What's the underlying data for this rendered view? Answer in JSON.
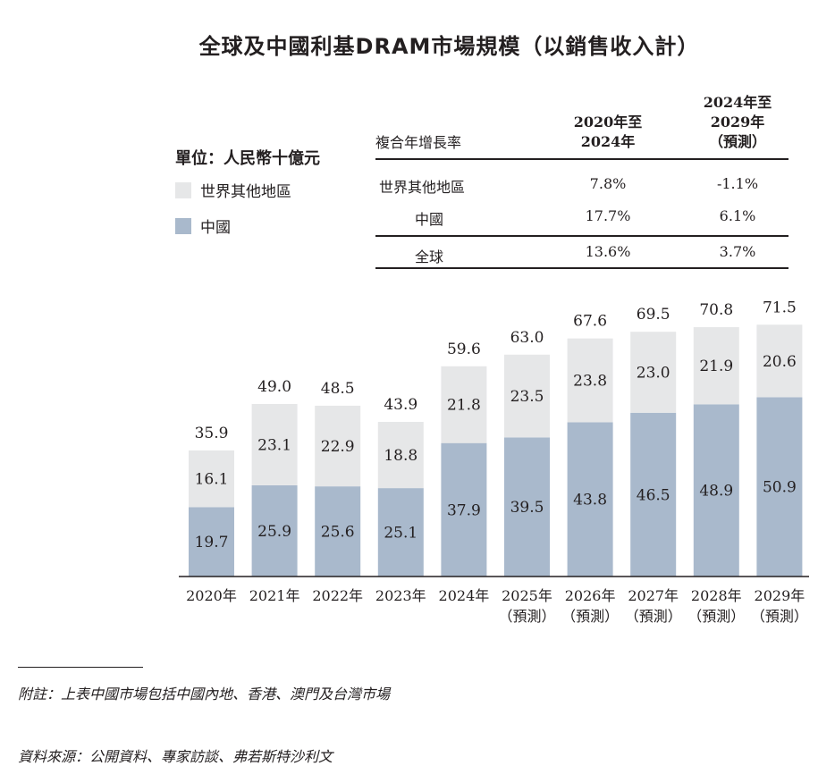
{
  "title": "全球及中國利基DRAM市場規模（以銷售收入計）",
  "unit_label": "單位：人民幣十億元",
  "legend": [
    {
      "label": "世界其他地區",
      "color": "#e6e7e8"
    },
    {
      "label": "中國",
      "color": "#a9b9cc"
    }
  ],
  "growth_table": {
    "header_label": "複合年增長率",
    "col1_header": [
      "2020年至",
      "2024年"
    ],
    "col2_header": [
      "2024年至",
      "2029年",
      "（預測）"
    ],
    "rows": [
      {
        "label": "世界其他地區",
        "c1": "7.8%",
        "c2": "-1.1%"
      },
      {
        "label": "中國",
        "c1": "17.7%",
        "c2": "6.1%"
      },
      {
        "label": "全球",
        "c1": "13.6%",
        "c2": "3.7%"
      }
    ]
  },
  "chart_data": {
    "type": "bar",
    "stacked": true,
    "categories": [
      "2020年",
      "2021年",
      "2022年",
      "2023年",
      "2024年",
      "2025年",
      "2026年",
      "2027年",
      "2028年",
      "2029年"
    ],
    "category_sublabels": [
      "",
      "",
      "",
      "",
      "",
      "（預測）",
      "（預測）",
      "（預測）",
      "（預測）",
      "（預測）"
    ],
    "series": [
      {
        "name": "中國",
        "color": "#a9b9cc",
        "values": [
          19.7,
          25.9,
          25.6,
          25.1,
          37.9,
          39.5,
          43.8,
          46.5,
          48.9,
          50.9
        ]
      },
      {
        "name": "世界其他地區",
        "color": "#e6e7e8",
        "values": [
          16.1,
          23.1,
          22.9,
          18.8,
          21.8,
          23.5,
          23.8,
          23.0,
          21.9,
          20.6
        ]
      }
    ],
    "totals": [
      35.9,
      49.0,
      48.5,
      43.9,
      59.6,
      63.0,
      67.6,
      69.5,
      70.8,
      71.5
    ],
    "ylim": [
      0,
      80
    ]
  },
  "footnote_1": "附註：上表中國市場包括中國內地、香港、澳門及台灣市場",
  "footnote_2": "資料來源：公開資料、專家訪談、弗若斯特沙利文"
}
